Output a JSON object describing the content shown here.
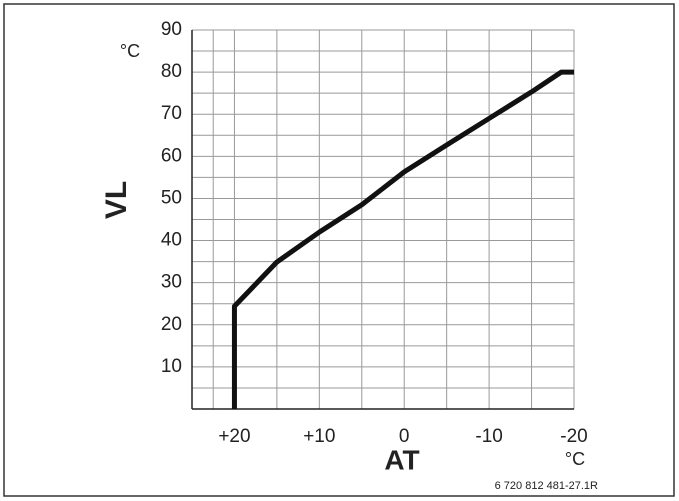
{
  "chart_data": {
    "type": "line",
    "y_label": "VL",
    "y_unit": "°C",
    "x_label": "AT",
    "x_unit": "°C",
    "footnote": "6 720 812 481-27.1R",
    "x": [
      20,
      20,
      15,
      10,
      5,
      0,
      -5,
      -10,
      -15,
      -18.5,
      -20
    ],
    "series": [
      {
        "values": [
          0,
          24.4,
          34.9,
          42,
          48.5,
          56.3,
          62.7,
          69,
          75.3,
          80,
          80
        ],
        "color": "#111111"
      }
    ],
    "xlim": [
      25,
      -20
    ],
    "xticks": [
      {
        "value": 20,
        "label": "+20"
      },
      {
        "value": 10,
        "label": "+10"
      },
      0,
      -10,
      -20
    ],
    "ylim": [
      0,
      90
    ],
    "yticks": [
      10,
      20,
      30,
      40,
      50,
      60,
      70,
      80,
      90
    ],
    "grid": true
  }
}
